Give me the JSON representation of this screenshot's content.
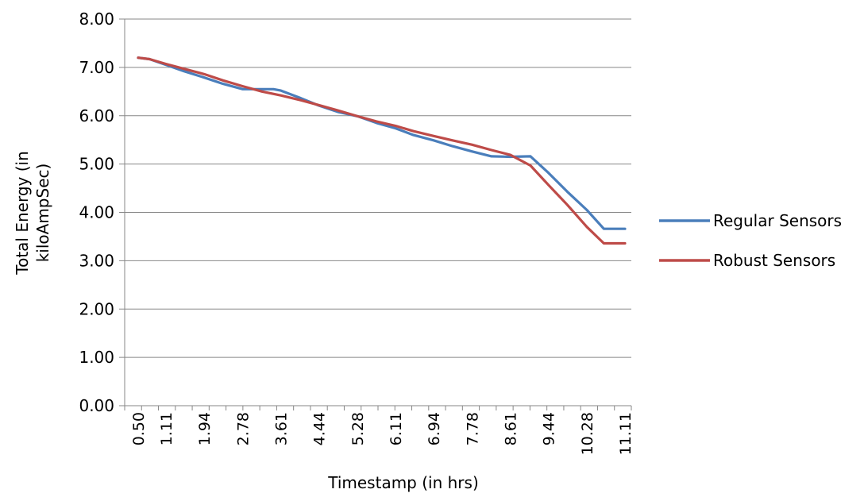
{
  "chart_data": {
    "type": "line",
    "title": "",
    "xlabel": "Timestamp (in hrs)",
    "ylabel_lines": [
      "Total Energy (in",
      "kiloAmpSec)"
    ],
    "ylim": [
      0,
      8
    ],
    "y_ticks": [
      "0.00",
      "1.00",
      "2.00",
      "3.00",
      "4.00",
      "5.00",
      "6.00",
      "7.00",
      "8.00"
    ],
    "x_range": [
      0.5,
      11.11
    ],
    "x_tick_labels": [
      "0.50",
      "1.11",
      "1.94",
      "2.78",
      "3.61",
      "4.44",
      "5.28",
      "6.11",
      "6.94",
      "7.78",
      "8.61",
      "9.44",
      "10.28",
      "11.11"
    ],
    "grid": true,
    "legend_position": "right",
    "series": [
      {
        "name": "Regular Sensors",
        "color": "#4a7ebb",
        "points": [
          [
            0.5,
            7.2
          ],
          [
            0.75,
            7.17
          ],
          [
            1.11,
            7.05
          ],
          [
            1.5,
            6.92
          ],
          [
            1.94,
            6.79
          ],
          [
            2.35,
            6.66
          ],
          [
            2.78,
            6.55
          ],
          [
            3.2,
            6.55
          ],
          [
            3.45,
            6.55
          ],
          [
            3.61,
            6.52
          ],
          [
            4.05,
            6.36
          ],
          [
            4.44,
            6.21
          ],
          [
            4.85,
            6.08
          ],
          [
            5.28,
            5.99
          ],
          [
            5.7,
            5.85
          ],
          [
            6.11,
            5.74
          ],
          [
            6.5,
            5.6
          ],
          [
            6.94,
            5.49
          ],
          [
            7.35,
            5.37
          ],
          [
            7.78,
            5.26
          ],
          [
            8.2,
            5.16
          ],
          [
            8.61,
            5.15
          ],
          [
            9.05,
            5.16
          ],
          [
            9.44,
            4.82
          ],
          [
            9.85,
            4.43
          ],
          [
            10.28,
            4.05
          ],
          [
            10.65,
            3.66
          ],
          [
            11.11,
            3.66
          ]
        ]
      },
      {
        "name": "Robust Sensors",
        "color": "#be4b48",
        "points": [
          [
            0.5,
            7.2
          ],
          [
            0.75,
            7.17
          ],
          [
            1.11,
            7.07
          ],
          [
            1.5,
            6.97
          ],
          [
            1.94,
            6.86
          ],
          [
            2.35,
            6.73
          ],
          [
            2.78,
            6.61
          ],
          [
            3.2,
            6.5
          ],
          [
            3.61,
            6.42
          ],
          [
            4.05,
            6.32
          ],
          [
            4.44,
            6.22
          ],
          [
            4.85,
            6.11
          ],
          [
            5.28,
            5.99
          ],
          [
            5.7,
            5.88
          ],
          [
            6.11,
            5.79
          ],
          [
            6.5,
            5.68
          ],
          [
            6.94,
            5.58
          ],
          [
            7.35,
            5.49
          ],
          [
            7.78,
            5.4
          ],
          [
            8.2,
            5.29
          ],
          [
            8.61,
            5.19
          ],
          [
            9.05,
            4.97
          ],
          [
            9.44,
            4.57
          ],
          [
            9.85,
            4.16
          ],
          [
            10.28,
            3.7
          ],
          [
            10.65,
            3.36
          ],
          [
            11.11,
            3.36
          ]
        ]
      }
    ]
  }
}
